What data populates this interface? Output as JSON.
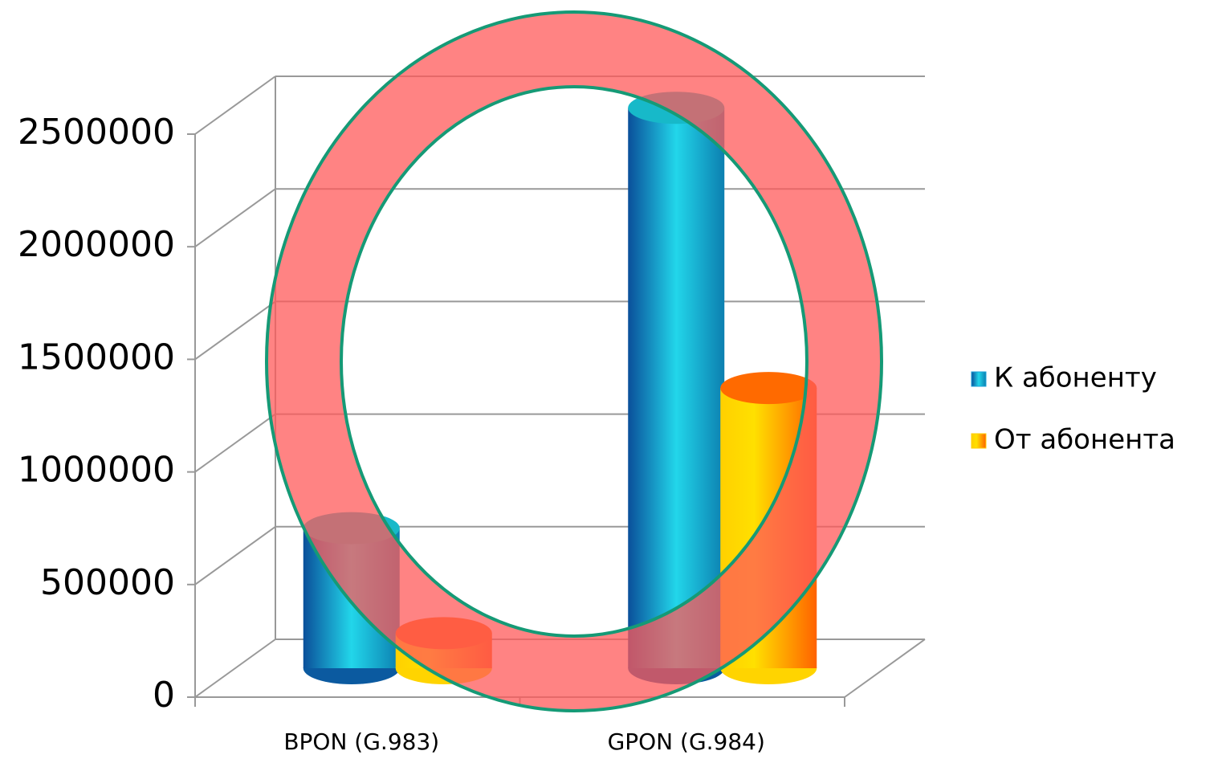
{
  "chart_data": {
    "type": "bar3d",
    "categories": [
      "BPON (G.983)",
      "GPON (G.984)"
    ],
    "series": [
      {
        "name": "К абоненту",
        "color": "#1aa0d8",
        "values": [
          622080,
          2488320
        ]
      },
      {
        "name": "От абонента",
        "color": "#ffcc00",
        "values": [
          155520,
          1244160
        ]
      }
    ],
    "ylim": [
      0,
      2500000
    ],
    "yticks": [
      0,
      500000,
      1000000,
      1500000,
      2000000,
      2500000
    ],
    "grid": true,
    "legend": "right"
  }
}
